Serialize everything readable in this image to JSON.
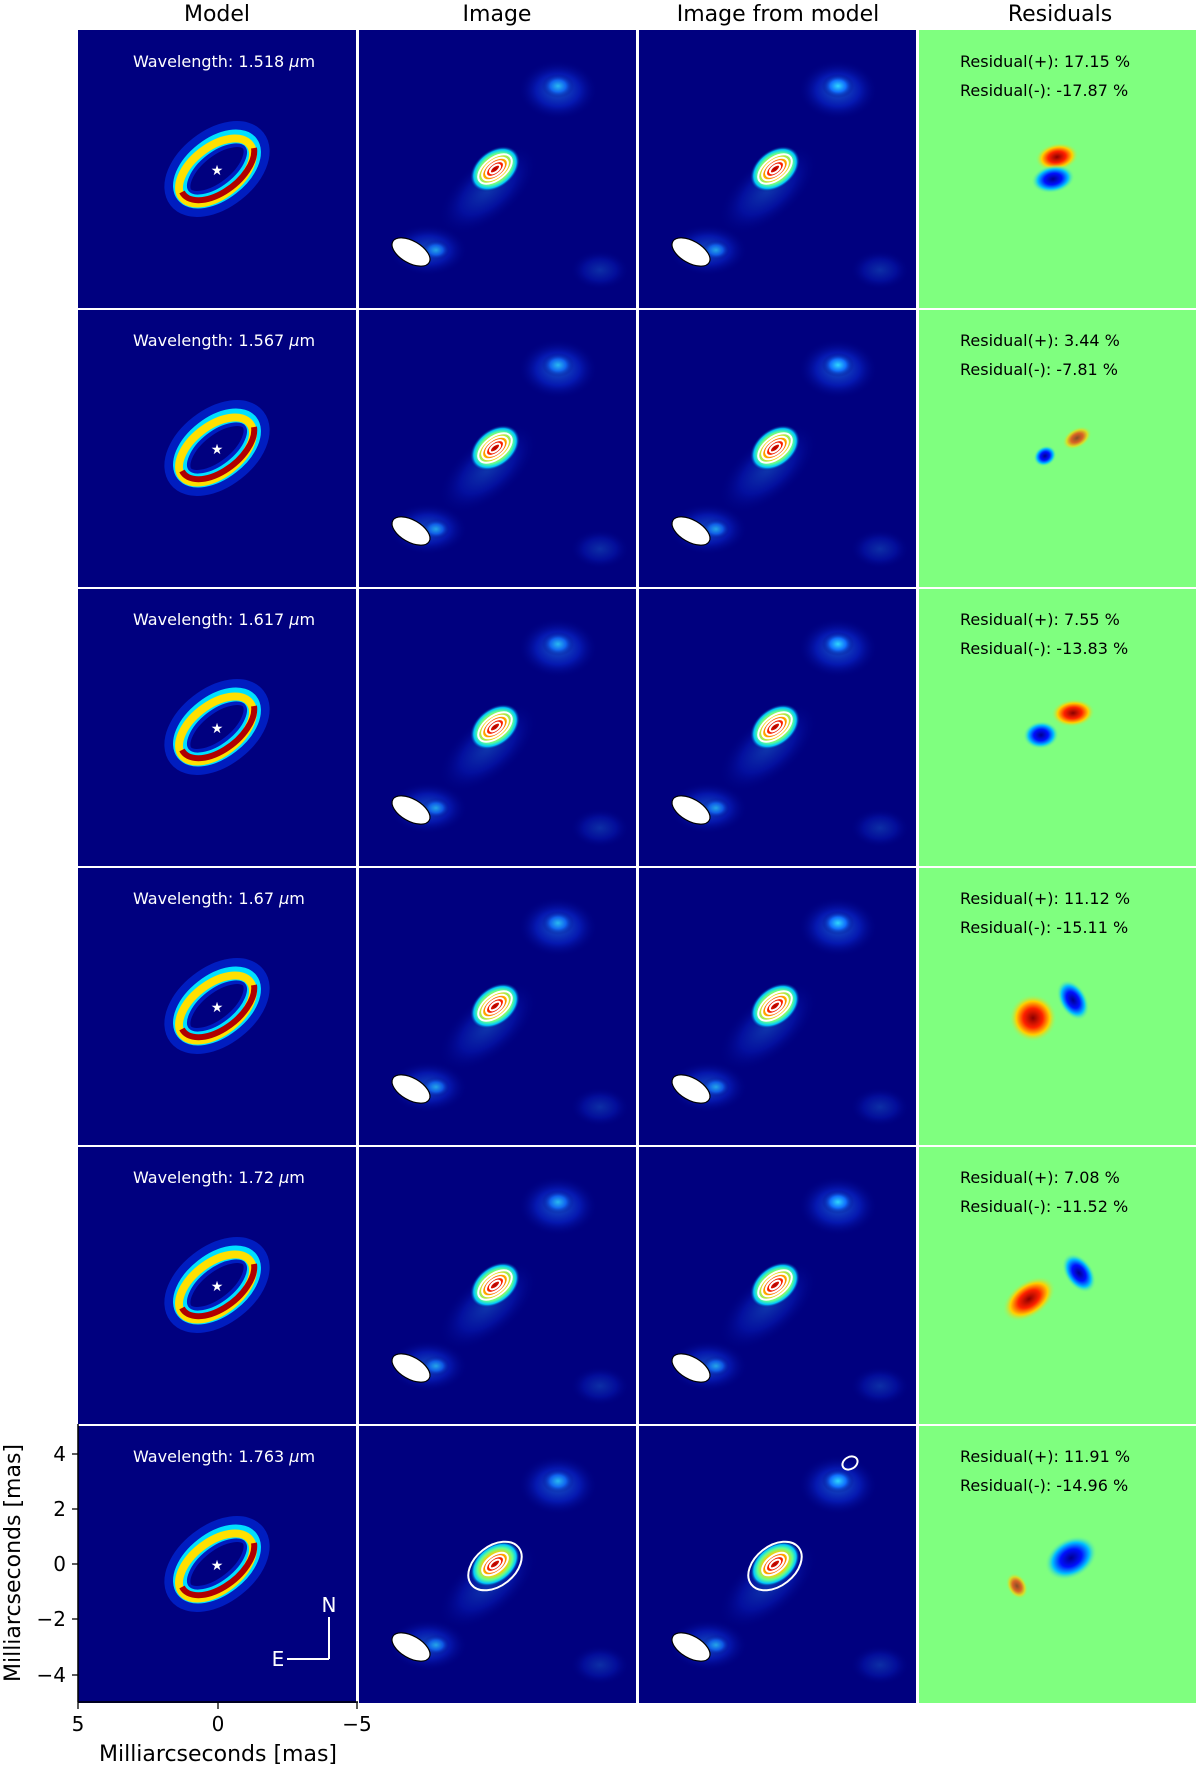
{
  "columns": [
    "Model",
    "Image",
    "Image from model",
    "Residuals"
  ],
  "rows": [
    {
      "wavelength_label": "Wavelength: 1.518 ",
      "residual_plus": "Residual(+): 17.15 %",
      "residual_minus": "Residual(-): -17.87 %"
    },
    {
      "wavelength_label": "Wavelength: 1.567 ",
      "residual_plus": "Residual(+): 3.44 %",
      "residual_minus": "Residual(-): -7.81 %"
    },
    {
      "wavelength_label": "Wavelength: 1.617 ",
      "residual_plus": "Residual(+): 7.55 %",
      "residual_minus": "Residual(-): -13.83 %"
    },
    {
      "wavelength_label": "Wavelength: 1.67 ",
      "residual_plus": "Residual(+): 11.12 %",
      "residual_minus": "Residual(-): -15.11 %"
    },
    {
      "wavelength_label": "Wavelength: 1.72 ",
      "residual_plus": "Residual(+): 7.08 %",
      "residual_minus": "Residual(-): -11.52 %"
    },
    {
      "wavelength_label": "Wavelength: 1.763 ",
      "residual_plus": "Residual(+): 11.91 %",
      "residual_minus": "Residual(-): -14.96 %"
    }
  ],
  "unit_mu": "μ",
  "unit_m": "m",
  "axes": {
    "ylabel": "Milliarcseconds [mas]",
    "xlabel": "Milliarcseconds [mas]",
    "yticks": [
      "4",
      "2",
      "0",
      "−2",
      "−4"
    ],
    "xticks": [
      "5",
      "0",
      "−5"
    ]
  },
  "compass": {
    "north": "N",
    "east": "E"
  },
  "colors": {
    "background": "#00007f",
    "residual_background": "#7fff7f",
    "contour": "#ffffff",
    "jet_ramp": [
      "#00008f",
      "#0000ff",
      "#0080ff",
      "#00ffff",
      "#80ff80",
      "#ffff00",
      "#ff8000",
      "#ff0000",
      "#800000"
    ]
  }
}
